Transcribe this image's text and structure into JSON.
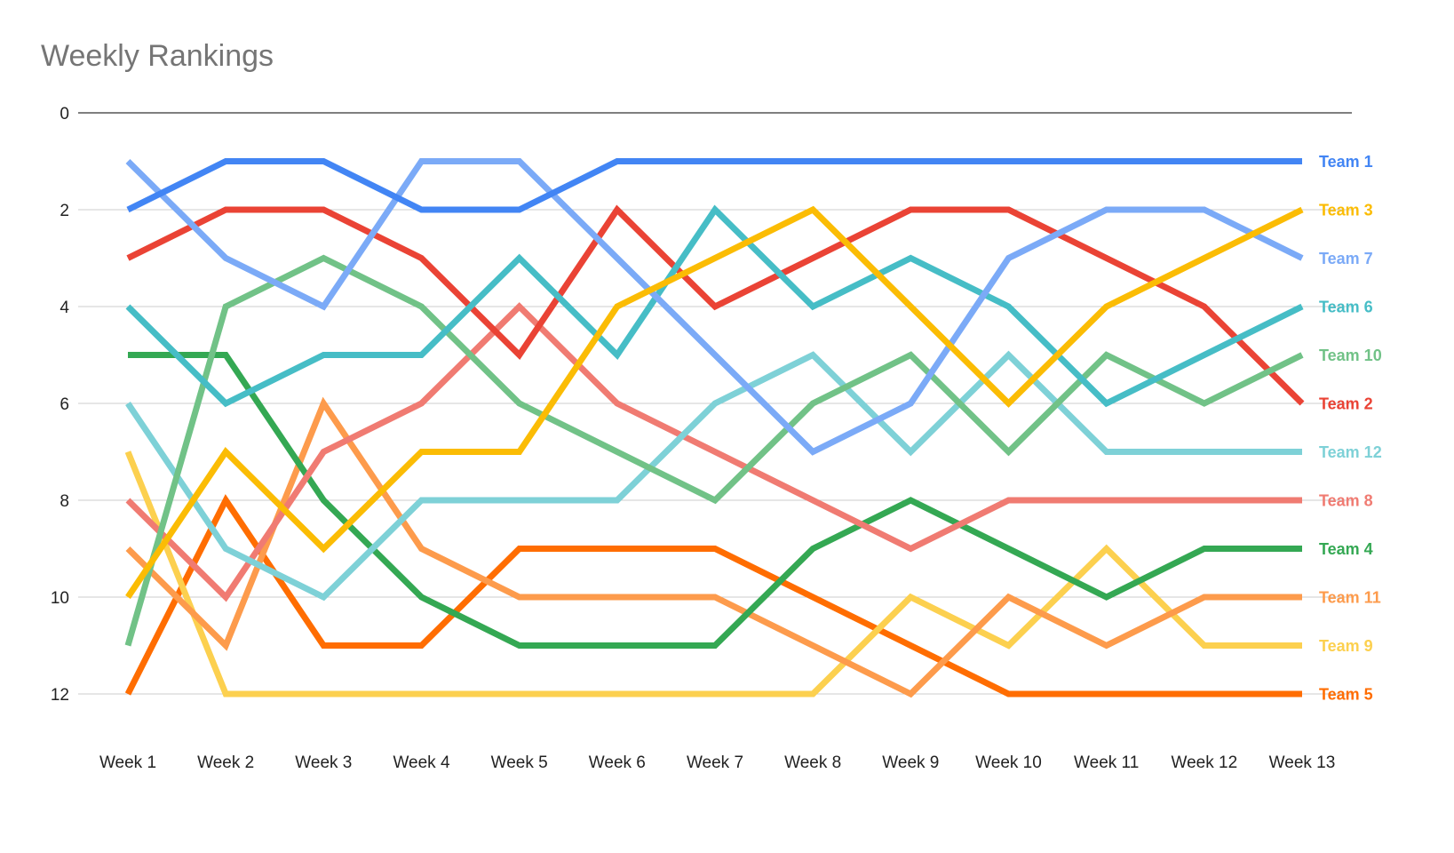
{
  "chart_data": {
    "type": "line",
    "title": "Weekly Rankings",
    "xlabel": "",
    "ylabel": "",
    "y_reversed": true,
    "ylim": [
      0,
      12
    ],
    "yticks": [
      "0",
      "2",
      "4",
      "6",
      "8",
      "10",
      "12"
    ],
    "grid": true,
    "legend": "right, labels at line ends",
    "categories": [
      "Week 1",
      "Week 2",
      "Week 3",
      "Week 4",
      "Week 5",
      "Week 6",
      "Week 7",
      "Week 8",
      "Week 9",
      "Week 10",
      "Week 11",
      "Week 12",
      "Week 13"
    ],
    "series": [
      {
        "name": "Team 1",
        "color": "#4285f4",
        "values": [
          2,
          1,
          1,
          2,
          2,
          1,
          1,
          1,
          1,
          1,
          1,
          1,
          1
        ]
      },
      {
        "name": "Team 3",
        "color": "#fbbc04",
        "values": [
          10,
          7,
          9,
          7,
          7,
          4,
          3,
          2,
          4,
          6,
          4,
          3,
          2
        ]
      },
      {
        "name": "Team 7",
        "color": "#7baaf7",
        "values": [
          1,
          3,
          4,
          1,
          1,
          3,
          5,
          7,
          6,
          3,
          2,
          2,
          3
        ]
      },
      {
        "name": "Team 6",
        "color": "#46bdc6",
        "values": [
          4,
          6,
          5,
          5,
          3,
          5,
          2,
          4,
          3,
          4,
          6,
          5,
          4
        ]
      },
      {
        "name": "Team 10",
        "color": "#71c287",
        "values": [
          11,
          4,
          3,
          4,
          6,
          7,
          8,
          6,
          5,
          7,
          5,
          6,
          5
        ]
      },
      {
        "name": "Team 2",
        "color": "#ea4335",
        "values": [
          3,
          2,
          2,
          3,
          5,
          2,
          4,
          3,
          2,
          2,
          3,
          4,
          6
        ]
      },
      {
        "name": "Team 12",
        "color": "#7ed1d7",
        "values": [
          6,
          9,
          10,
          8,
          8,
          8,
          6,
          5,
          7,
          5,
          7,
          7,
          7
        ]
      },
      {
        "name": "Team 8",
        "color": "#f07b72",
        "values": [
          8,
          10,
          7,
          6,
          4,
          6,
          7,
          8,
          9,
          8,
          8,
          8,
          8
        ]
      },
      {
        "name": "Team 4",
        "color": "#34a853",
        "values": [
          5,
          5,
          8,
          10,
          11,
          11,
          11,
          9,
          8,
          9,
          10,
          9,
          9
        ]
      },
      {
        "name": "Team 11",
        "color": "#fd9b4c",
        "values": [
          9,
          11,
          6,
          9,
          10,
          10,
          10,
          11,
          12,
          10,
          11,
          10,
          10
        ]
      },
      {
        "name": "Team 9",
        "color": "#fcd04f",
        "values": [
          7,
          12,
          12,
          12,
          12,
          12,
          12,
          12,
          10,
          11,
          9,
          11,
          11
        ]
      },
      {
        "name": "Team 5",
        "color": "#ff6d01",
        "values": [
          12,
          8,
          11,
          11,
          9,
          9,
          9,
          10,
          11,
          12,
          12,
          12,
          12
        ]
      }
    ]
  }
}
